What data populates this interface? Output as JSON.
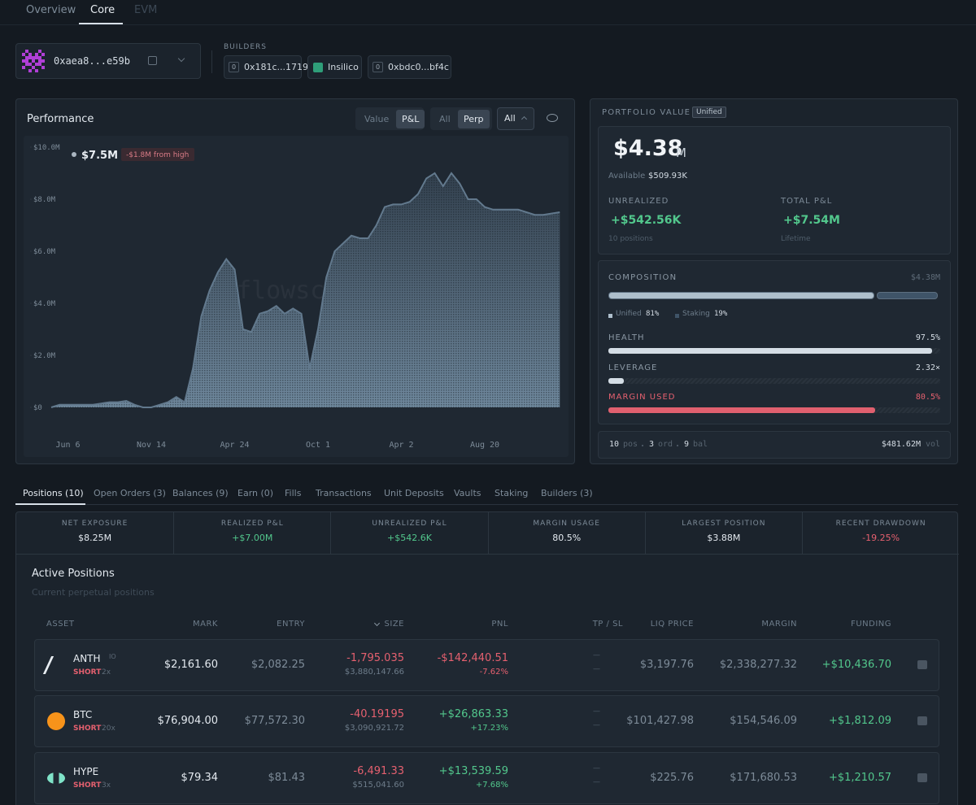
{
  "tabs": [
    "Overview",
    "Core",
    "EVM"
  ],
  "wallet": {
    "address": "0xaea8...e59b"
  },
  "builders": {
    "label": "BUILDERS",
    "items": [
      {
        "icon": "0",
        "name": "0x181c...1719"
      },
      {
        "name": "Insilico"
      },
      {
        "icon": "0",
        "name": "0xbdc0...bf4c"
      }
    ]
  },
  "performance": {
    "toggle_mode": [
      "Value",
      "P&L"
    ],
    "toggle_scope": [
      "All",
      "Perp"
    ],
    "range": "All"
  },
  "chart_data": {
    "type": "area",
    "title": "Performance",
    "color": "#6f889d",
    "watermark": "flowscan",
    "annotation": {
      "value": "$7.5M",
      "note": "-$1.8M from high"
    },
    "categories": [
      null,
      null,
      "Jun 6",
      null,
      null,
      null,
      null,
      null,
      null,
      null,
      null,
      null,
      "Nov 14",
      null,
      null,
      null,
      null,
      null,
      null,
      null,
      null,
      null,
      "Apr 24",
      null,
      null,
      null,
      null,
      null,
      null,
      null,
      null,
      null,
      "Oct 1",
      null,
      null,
      null,
      null,
      null,
      null,
      null,
      null,
      null,
      "Apr 2",
      null,
      null,
      null,
      null,
      null,
      null,
      null,
      null,
      null,
      "Aug 20",
      null,
      null,
      null,
      null,
      null,
      null,
      null,
      null,
      null
    ],
    "values": [
      0,
      0.1,
      0.1,
      0.1,
      0.1,
      0.1,
      0.15,
      0.2,
      0.2,
      0.25,
      0.1,
      0,
      0,
      0.1,
      0.2,
      0.4,
      0.2,
      1.5,
      3.5,
      4.5,
      5.2,
      5.7,
      5.3,
      3.0,
      2.9,
      3.6,
      3.7,
      3.9,
      3.6,
      3.8,
      3.6,
      1.5,
      3.0,
      5.0,
      6.0,
      6.3,
      6.6,
      6.5,
      6.5,
      7.0,
      7.7,
      7.8,
      7.8,
      7.9,
      8.2,
      8.8,
      9.0,
      8.5,
      9.0,
      8.6,
      8.0,
      8.0,
      7.7,
      7.6,
      7.6,
      7.6,
      7.6,
      7.5,
      7.4,
      7.4,
      7.45,
      7.5
    ],
    "ylim": [
      0,
      10
    ],
    "yticks": [
      {
        "value": 0,
        "label": "$0"
      },
      {
        "value": 2,
        "label": "$2.0M"
      },
      {
        "value": 4,
        "label": "$4.0M"
      },
      {
        "value": 6,
        "label": "$6.0M"
      },
      {
        "value": 8,
        "label": "$8.0M"
      },
      {
        "value": 10,
        "label": "$10.0M"
      }
    ]
  },
  "portfolio": {
    "label": "PORTFOLIO VALUE",
    "badge": "Unified",
    "value": "$4.38",
    "unit": "M",
    "available_label": "Available",
    "available": "$509.93K",
    "unrealized": {
      "label": "UNREALIZED",
      "value": "+$542.56K",
      "sub": "10 positions"
    },
    "total": {
      "label": "TOTAL P&L",
      "value": "+$7.54M",
      "sub": "Lifetime"
    }
  },
  "composition": {
    "label": "COMPOSITION",
    "total": "$4.38M",
    "segments": [
      {
        "name": "Unified",
        "value": 81,
        "label": "81%",
        "color": "#aebfcc"
      },
      {
        "name": "Staking",
        "value": 19,
        "label": "19%",
        "color": "#3f5468"
      }
    ]
  },
  "meters": [
    {
      "label": "HEALTH",
      "value": 97.5,
      "value_label": "97.5%",
      "color": "#d4dde5"
    },
    {
      "label": "LEVERAGE",
      "value": 2.32,
      "value_label": "2.32×",
      "color": "#d4dde5"
    },
    {
      "label": "MARGIN USED",
      "value": 80.5,
      "value_label": "80.5%",
      "color": "#e0606f"
    }
  ],
  "footer": {
    "counts": [
      {
        "value": "10",
        "unit": "pos"
      },
      {
        "value": "3",
        "unit": "ord"
      },
      {
        "value": "9",
        "unit": "bal"
      }
    ],
    "volume": "$481.62M",
    "volume_unit": "vol"
  },
  "bottom_tabs": [
    "Positions (10)",
    "Open Orders (3)",
    "Balances (9)",
    "Earn (0)",
    "Fills",
    "Transactions",
    "Unit Deposits",
    "Vaults",
    "Staking",
    "Builders (3)"
  ],
  "stats": [
    {
      "label": "NET EXPOSURE",
      "value": "$8.25M"
    },
    {
      "label": "REALIZED P&L",
      "value": "+$7.00M"
    },
    {
      "label": "UNREALIZED P&L",
      "value": "+$542.6K"
    },
    {
      "label": "MARGIN USAGE",
      "value": "80.5%"
    },
    {
      "label": "LARGEST POSITION",
      "value": "$3.88M"
    },
    {
      "label": "RECENT DRAWDOWN",
      "value": "-19.25%"
    }
  ],
  "positions": {
    "title": "Active Positions",
    "subtitle": "Current perpetual positions",
    "columns": [
      "ASSET",
      "MARK",
      "ENTRY",
      "SIZE",
      "PNL",
      "TP / SL",
      "LIQ PRICE",
      "MARGIN",
      "FUNDING"
    ],
    "rows": [
      {
        "asset": "ANTH",
        "tag": "IO",
        "side": "SHORT",
        "leverage": "2x",
        "mark": "$2,161.60",
        "entry": "$2,082.25",
        "size": "-1,795.035",
        "size_usd": "$3,880,147.66",
        "pnl": "-$142,440.51",
        "pnl_pct": "-7.62%",
        "tp": "—",
        "sl": "—",
        "liq": "$3,197.76",
        "margin": "$2,338,277.32",
        "funding": "+$10,436.70"
      },
      {
        "asset": "BTC",
        "side": "SHORT",
        "leverage": "20x",
        "mark": "$76,904.00",
        "entry": "$77,572.30",
        "size": "-40.19195",
        "size_usd": "$3,090,921.72",
        "pnl": "+$26,863.33",
        "pnl_pct": "+17.23%",
        "tp": "—",
        "sl": "—",
        "liq": "$101,427.98",
        "margin": "$154,546.09",
        "funding": "+$1,812.09"
      },
      {
        "asset": "HYPE",
        "side": "SHORT",
        "leverage": "3x",
        "mark": "$79.34",
        "entry": "$81.43",
        "size": "-6,491.33",
        "size_usd": "$515,041.60",
        "pnl": "+$13,539.59",
        "pnl_pct": "+7.68%",
        "tp": "—",
        "sl": "—",
        "liq": "$225.76",
        "margin": "$171,680.53",
        "funding": "+$1,210.57"
      }
    ]
  }
}
